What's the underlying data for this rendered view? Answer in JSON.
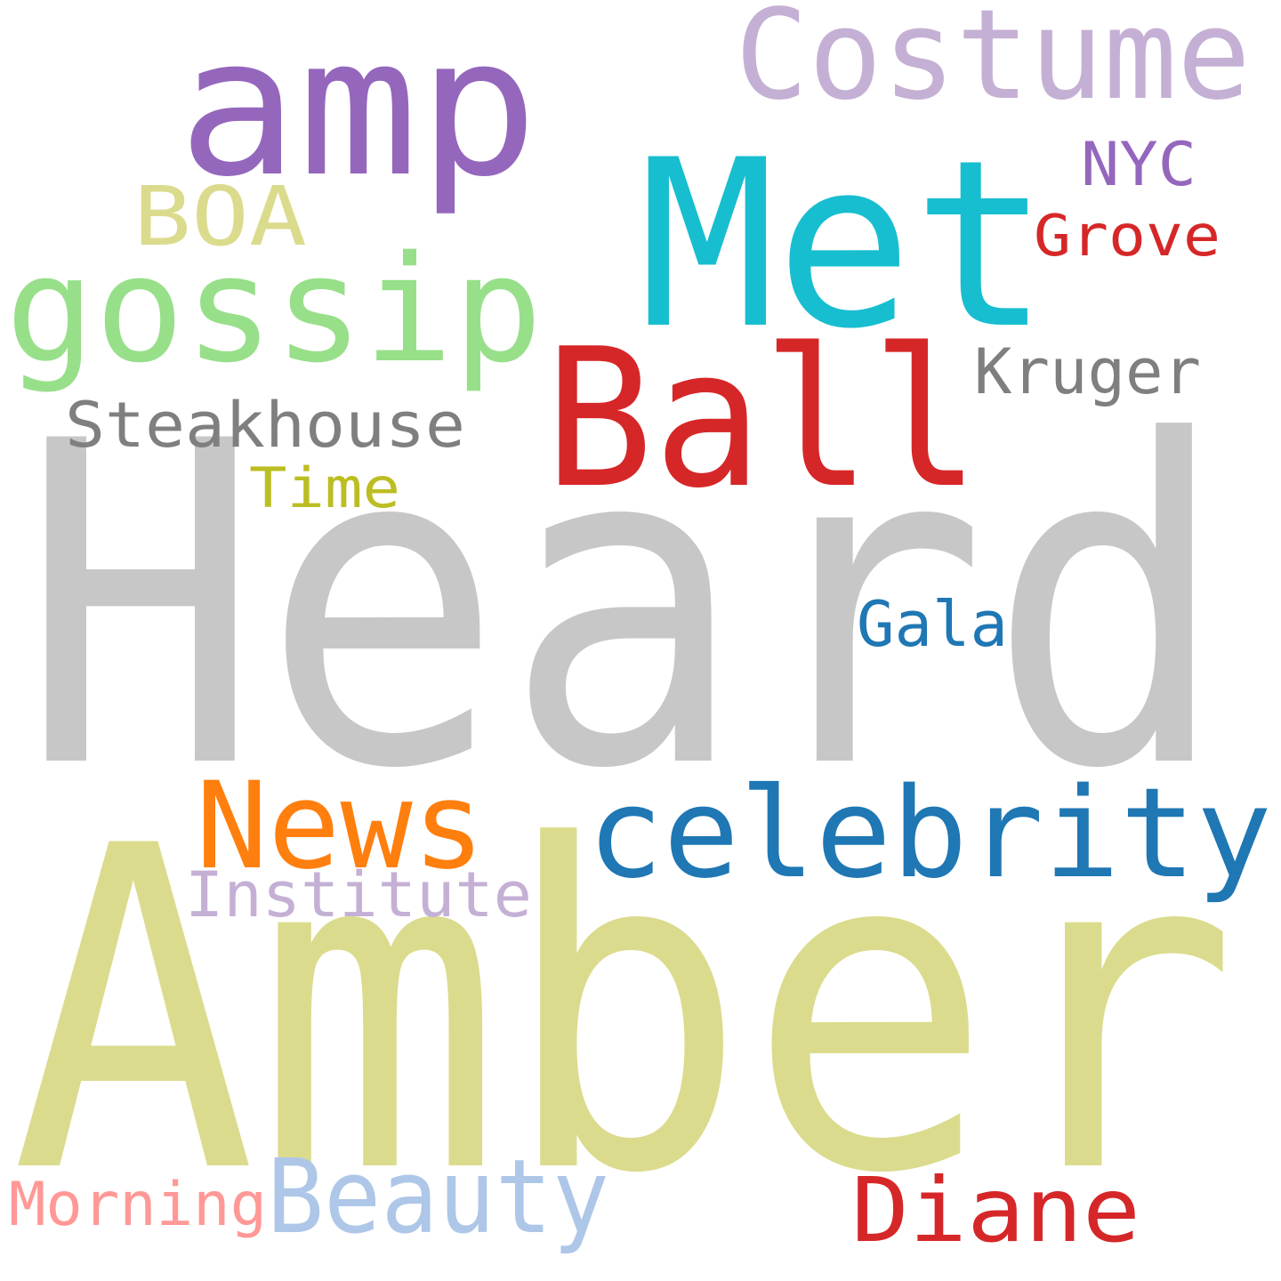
{
  "word_cloud": {
    "background": "#ffffff",
    "words": {
      "heard": {
        "text": "Heard",
        "color": "#c7c7c7"
      },
      "amber": {
        "text": "Amber",
        "color": "#dbdb8d"
      },
      "ball": {
        "text": "Ball",
        "color": "#d62728"
      },
      "met": {
        "text": "Met",
        "color": "#17becf"
      },
      "amp": {
        "text": "amp",
        "color": "#9467bd"
      },
      "gossip": {
        "text": "gossip",
        "color": "#98df8a"
      },
      "costume": {
        "text": "Costume",
        "color": "#c5b0d5"
      },
      "celebrity": {
        "text": "celebrity",
        "color": "#1f77b4"
      },
      "news": {
        "text": "News",
        "color": "#ff7f0e"
      },
      "beauty": {
        "text": "Beauty",
        "color": "#aec7e8"
      },
      "diane": {
        "text": "Diane",
        "color": "#d62728"
      },
      "boa": {
        "text": "BOA",
        "color": "#dbdb8d"
      },
      "steakhouse": {
        "text": "Steakhouse",
        "color": "#7f7f7f"
      },
      "kruger": {
        "text": "Kruger",
        "color": "#7f7f7f"
      },
      "institute": {
        "text": "Institute",
        "color": "#c5b0d5"
      },
      "gala": {
        "text": "Gala",
        "color": "#1f77b4"
      },
      "morning": {
        "text": "Morning",
        "color": "#ff9896"
      },
      "grove": {
        "text": "Grove",
        "color": "#d62728"
      },
      "nyc": {
        "text": "NYC",
        "color": "#9467bd"
      },
      "time": {
        "text": "Time",
        "color": "#bcbd22"
      }
    }
  }
}
